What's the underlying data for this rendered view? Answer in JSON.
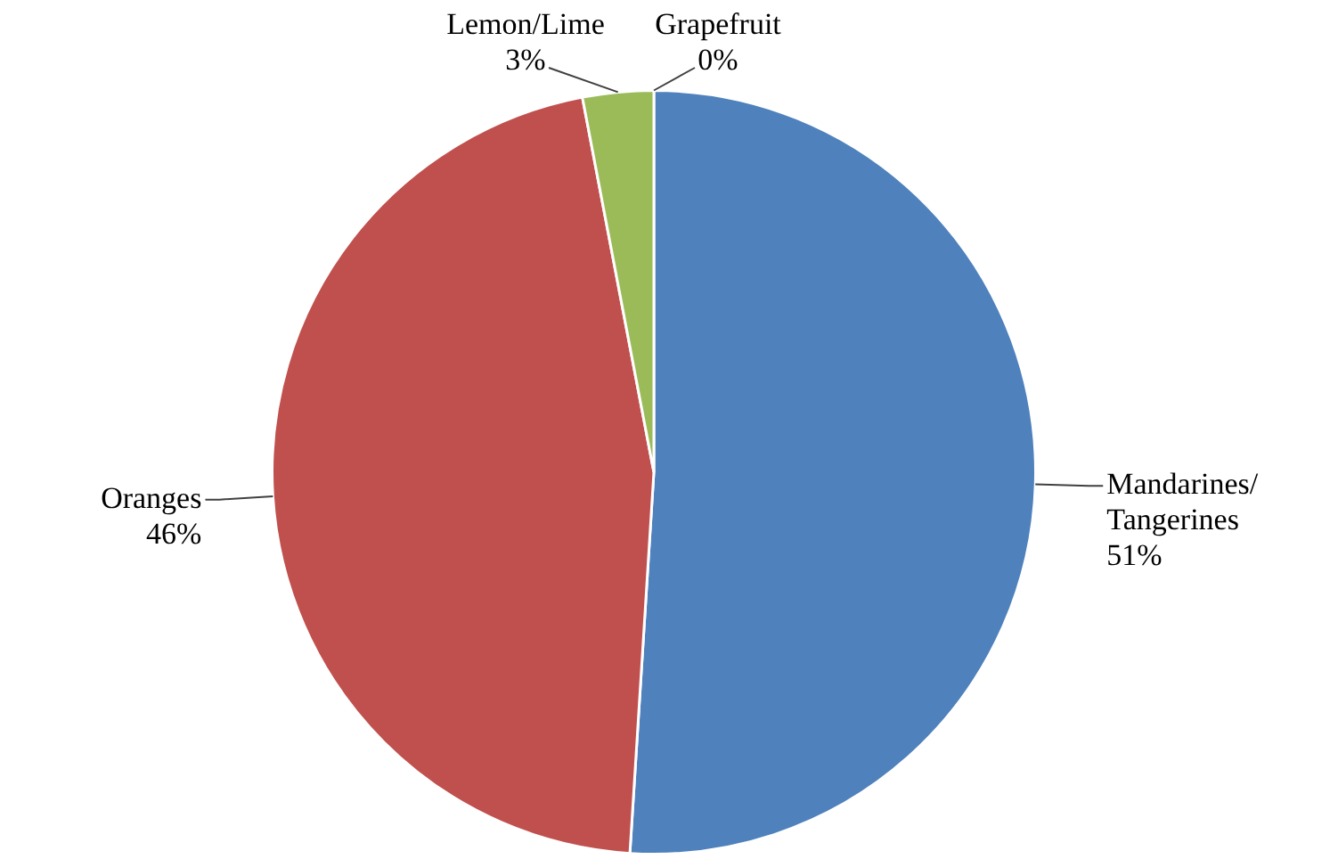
{
  "chart_data": {
    "type": "pie",
    "categories": [
      "Mandarines/Tangerines",
      "Oranges",
      "Lemon/Lime",
      "Grapefruit"
    ],
    "values": [
      51,
      46,
      3,
      0
    ],
    "colors": [
      "#4f81bd",
      "#c0504d",
      "#9bbb59",
      "#8064a2"
    ],
    "value_labels": [
      "51%",
      "46%",
      "3%",
      "0%"
    ],
    "legend": false
  }
}
